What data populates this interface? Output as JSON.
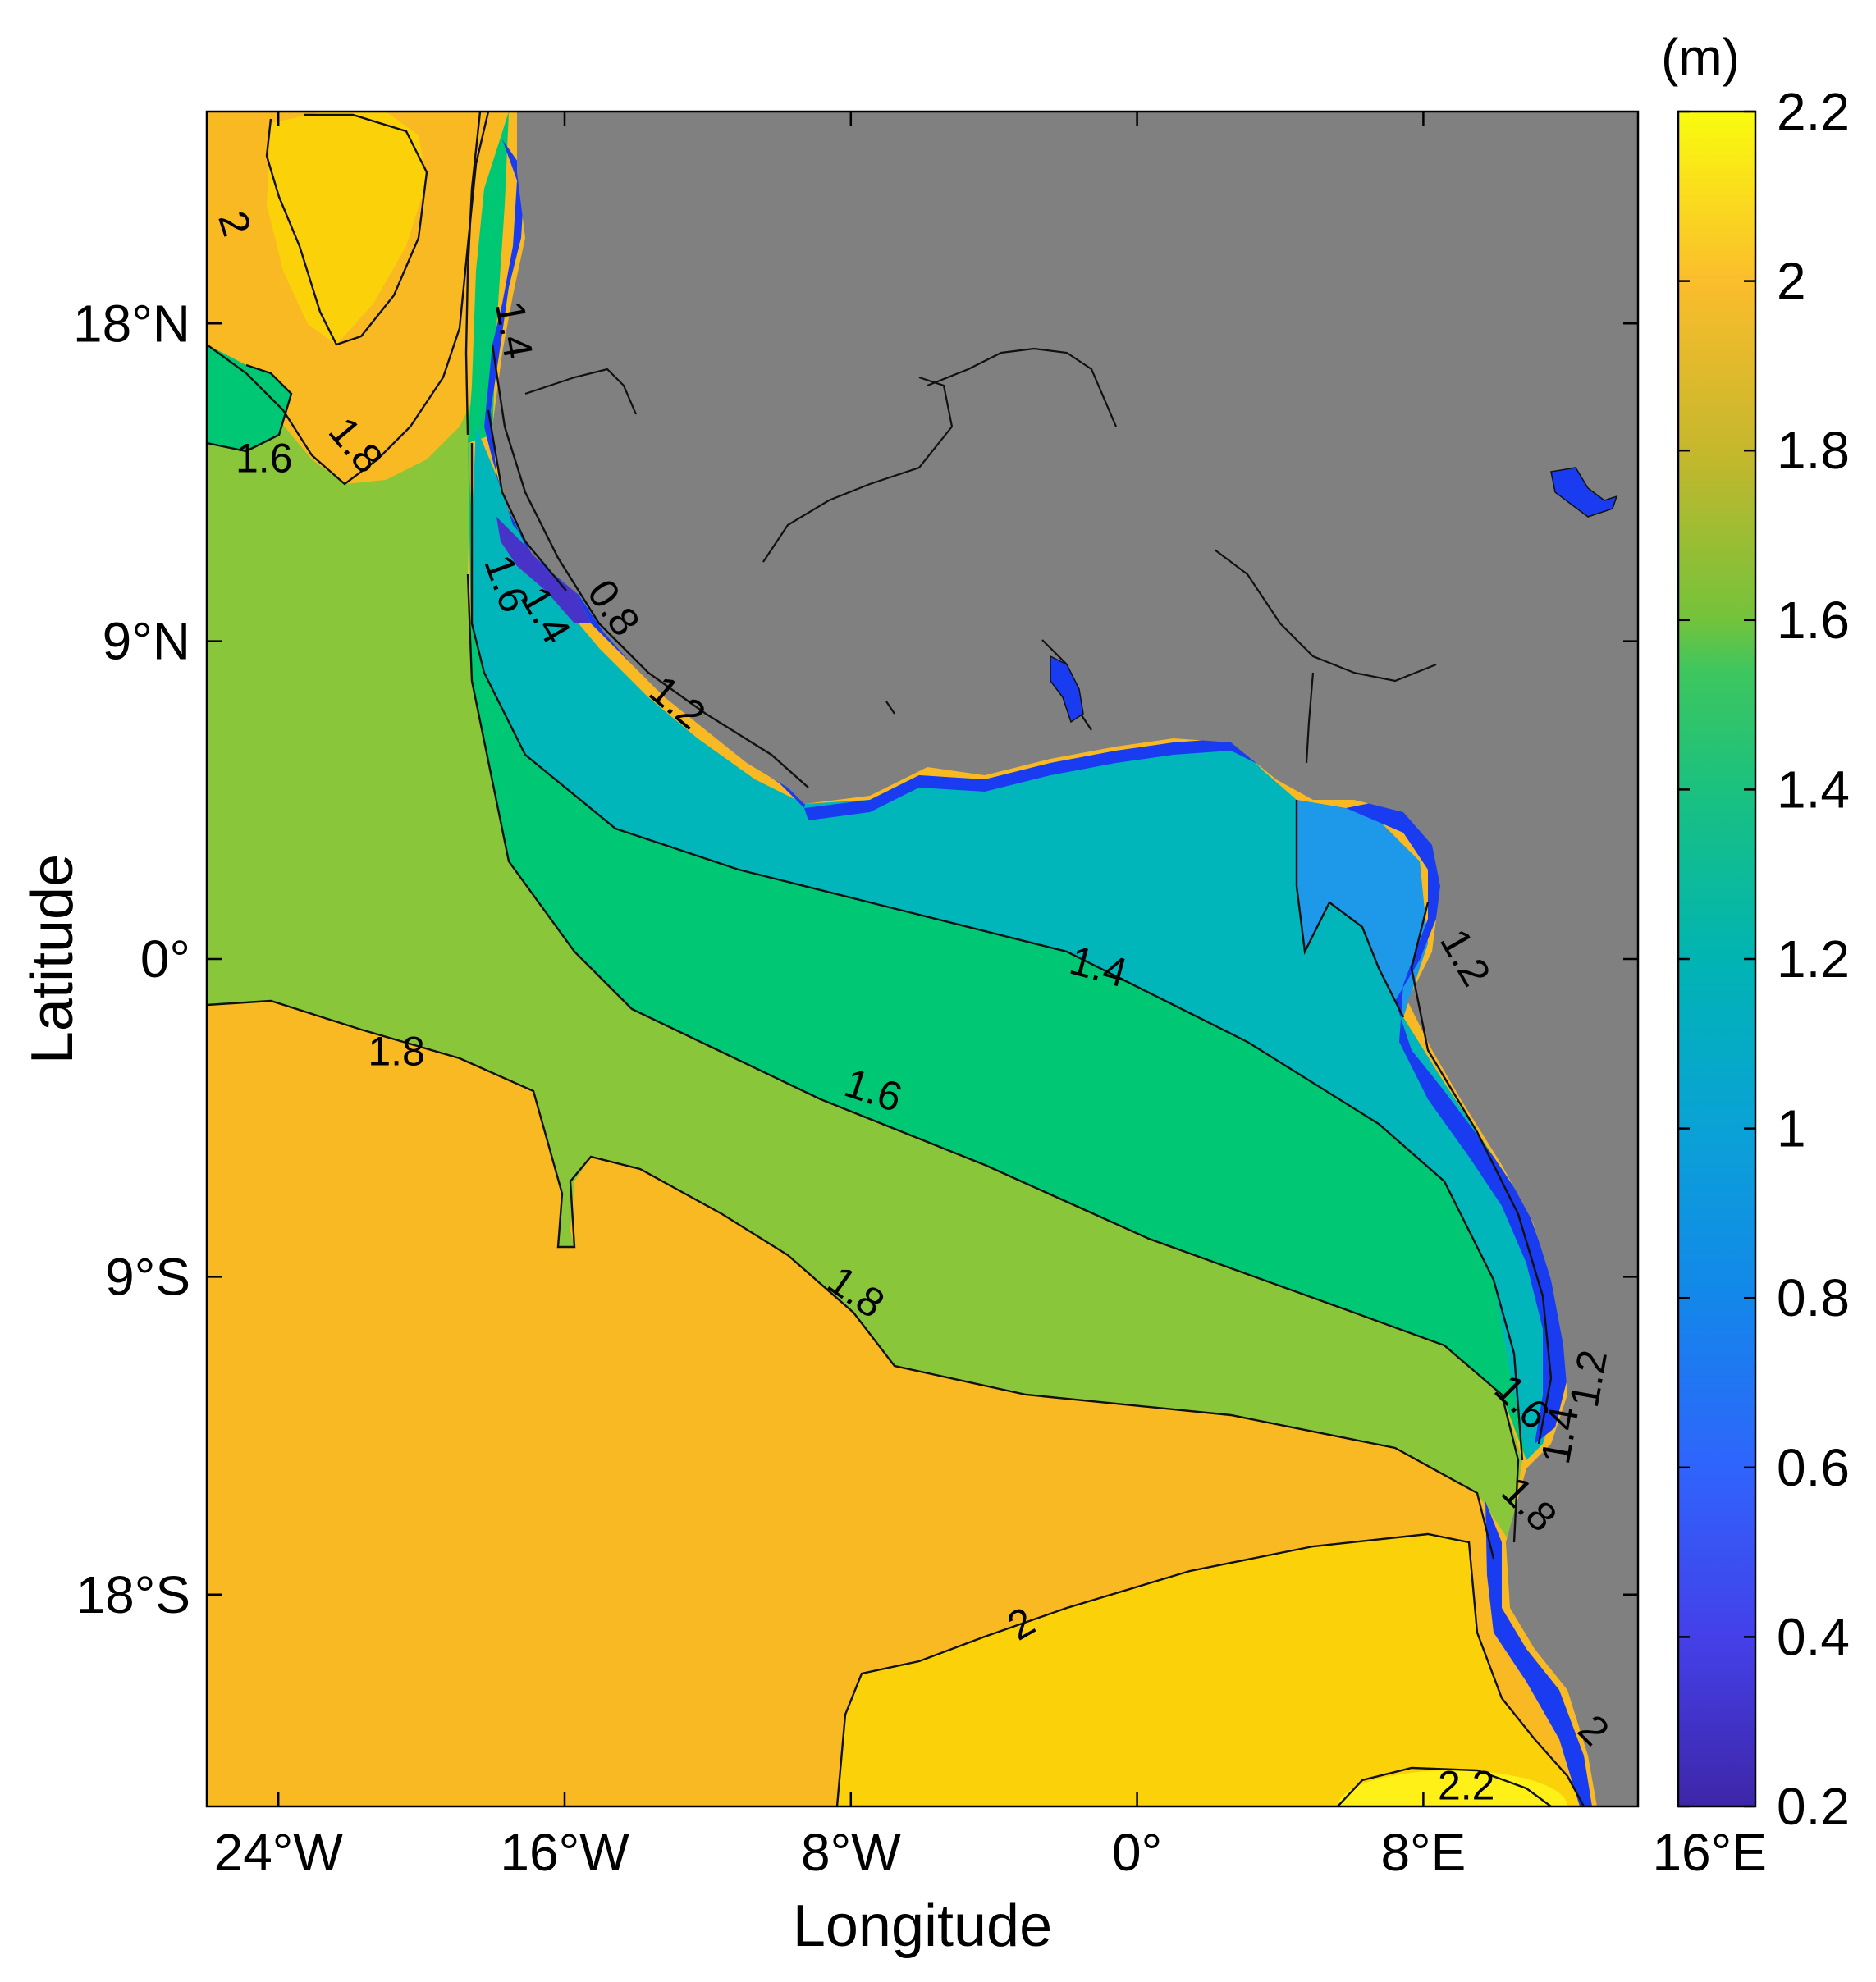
{
  "chart_data": {
    "type": "heatmap",
    "xlabel": "Longitude",
    "ylabel": "Latitude",
    "x_ticks": [
      "24°W",
      "16°W",
      "8°W",
      "0°",
      "8°E",
      "16°E"
    ],
    "x_tick_values": [
      -24,
      -16,
      -8,
      0,
      8,
      16
    ],
    "y_ticks": [
      "18°N",
      "9°N",
      "0°",
      "9°S",
      "18°S"
    ],
    "y_tick_values": [
      18,
      9,
      0,
      -9,
      -18
    ],
    "xlim": [
      -26,
      14
    ],
    "ylim": [
      -24,
      24
    ],
    "colorbar": {
      "unit": "(m)",
      "ticks": [
        "2.2",
        "2",
        "1.8",
        "1.6",
        "1.4",
        "1.2",
        "1",
        "0.8",
        "0.6",
        "0.4",
        "0.2"
      ],
      "tick_values": [
        2.2,
        2.0,
        1.8,
        1.6,
        1.4,
        1.2,
        1.0,
        0.8,
        0.6,
        0.4,
        0.2
      ],
      "range": [
        0.2,
        2.2
      ]
    },
    "contour_levels": [
      0.8,
      1.0,
      1.2,
      1.4,
      1.6,
      1.8,
      2.0,
      2.2
    ],
    "contour_labels": [
      {
        "text": "2",
        "lon": -25.3,
        "lat": 20.8,
        "angle": 72
      },
      {
        "text": "1.8",
        "lon": -21.9,
        "lat": 14.5,
        "angle": 50
      },
      {
        "text": "1.6",
        "lon": -24.4,
        "lat": 14.1,
        "angle": 0
      },
      {
        "text": "1.4",
        "lon": -17.5,
        "lat": 17.8,
        "angle": 80
      },
      {
        "text": "1.6",
        "lon": -17.7,
        "lat": 10.6,
        "angle": 70
      },
      {
        "text": "1.4",
        "lon": -16.6,
        "lat": 9.7,
        "angle": 60
      },
      {
        "text": "0.8",
        "lon": -14.7,
        "lat": 9.9,
        "angle": 55
      },
      {
        "text": "1.2",
        "lon": -12.9,
        "lat": 7.2,
        "angle": 40
      },
      {
        "text": "1.4",
        "lon": -1.1,
        "lat": -0.3,
        "angle": 15
      },
      {
        "text": "1.6",
        "lon": -7.4,
        "lat": -3.8,
        "angle": 18
      },
      {
        "text": "1.8",
        "lon": -20.7,
        "lat": -2.7,
        "angle": 0
      },
      {
        "text": "1.8",
        "lon": -7.9,
        "lat": -9.5,
        "angle": 35
      },
      {
        "text": "1.2",
        "lon": 9.1,
        "lat": 0.0,
        "angle": 60
      },
      {
        "text": "1.2",
        "lon": 12.7,
        "lat": -11.9,
        "angle": -80
      },
      {
        "text": "1.4",
        "lon": 11.9,
        "lat": -13.5,
        "angle": -80
      },
      {
        "text": "1.6",
        "lon": 10.7,
        "lat": -12.6,
        "angle": 45
      },
      {
        "text": "1.8",
        "lon": 10.9,
        "lat": -15.5,
        "angle": 45
      },
      {
        "text": "2",
        "lon": -3.2,
        "lat": -18.9,
        "angle": -30
      },
      {
        "text": "2",
        "lon": 12.7,
        "lat": -21.9,
        "angle": 45
      },
      {
        "text": "2.2",
        "lon": 9.2,
        "lat": -23.5,
        "angle": 0
      }
    ],
    "colors": {
      "land": "#808080",
      "level_2_0": "#fbd10a",
      "level_1_8": "#f9b923",
      "level_1_6": "#8ac63a",
      "level_1_4": "#00c774",
      "level_1_2": "#00b6bb",
      "level_1_0": "#1e98e8",
      "level_0_8": "#1a3cf0",
      "level_0_4": "#4733c8"
    }
  }
}
